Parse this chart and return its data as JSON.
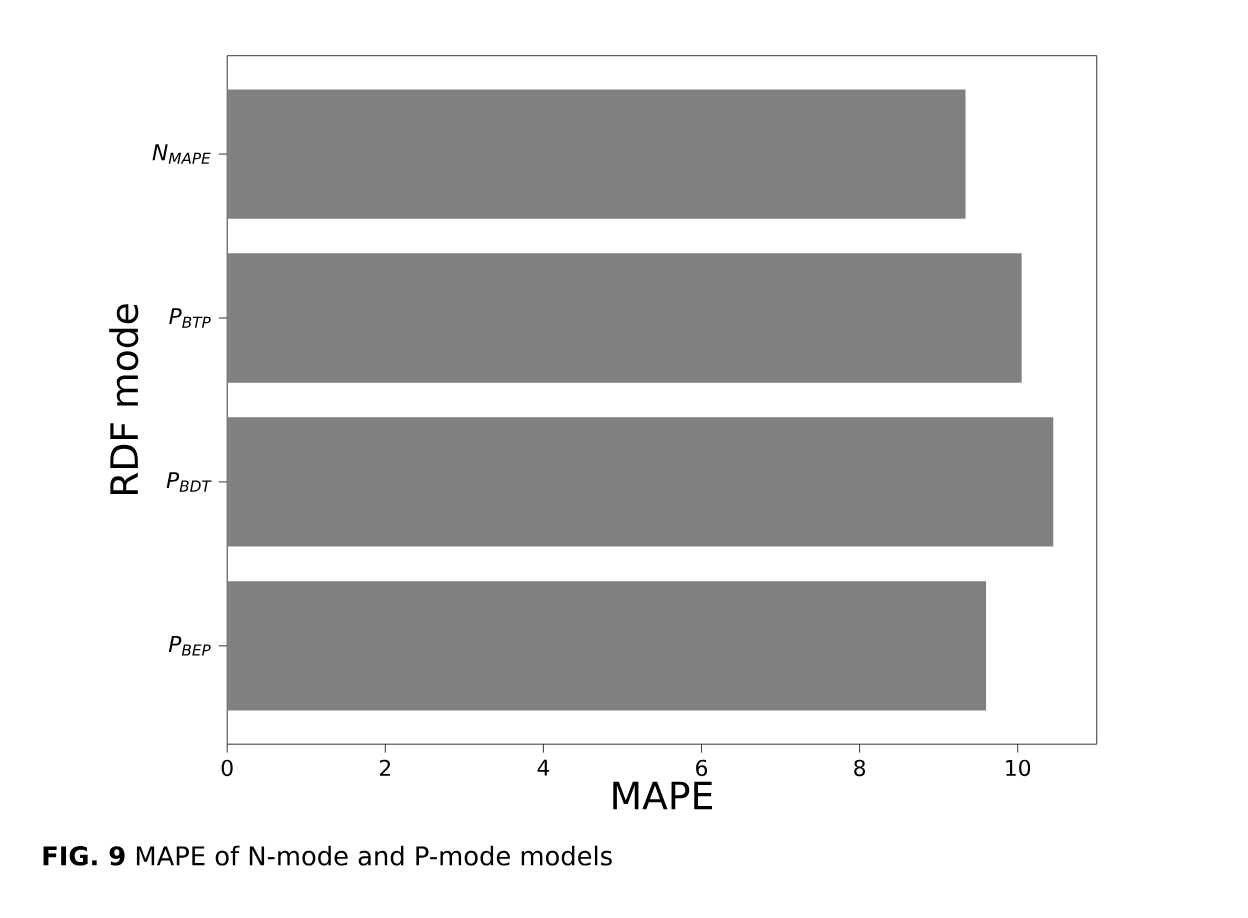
{
  "chart_data": {
    "type": "bar",
    "orientation": "horizontal",
    "xlabel": "MAPE",
    "ylabel": "RDF mode",
    "categories": [
      "N$_{MAPE}$",
      "P$_{BTP}$",
      "P$_{BDT}$",
      "P$_{BEP}$"
    ],
    "values": [
      9.34,
      10.05,
      10.45,
      9.6
    ],
    "color": "#808080",
    "xlim": [
      0,
      11
    ],
    "xticks": [
      0,
      2,
      4,
      6,
      8,
      10
    ],
    "grid": false,
    "annotations": [
      "**FIG. 9** MAPE of N-mode and P-mode models"
    ]
  }
}
